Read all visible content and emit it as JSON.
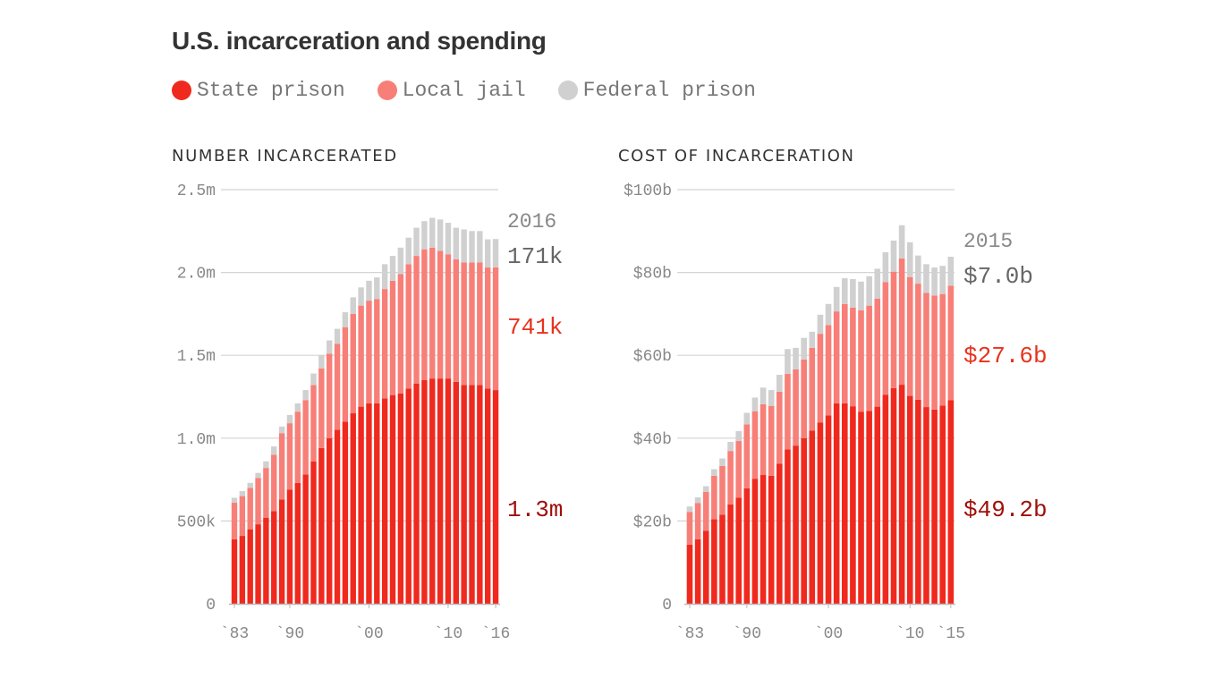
{
  "title": "U.S. incarceration and spending",
  "legend": [
    {
      "label": "State prison",
      "color": "#f0291e"
    },
    {
      "label": "Local jail",
      "color": "#f77f78"
    },
    {
      "label": "Federal prison",
      "color": "#d0d0d0"
    }
  ],
  "chart_data": [
    {
      "type": "bar",
      "stacked": true,
      "title": "NUMBER INCARCERATED",
      "unit": "millions",
      "ylim": [
        0,
        2.5
      ],
      "yticks": [
        {
          "v": 0,
          "label": "0"
        },
        {
          "v": 0.5,
          "label": "500k"
        },
        {
          "v": 1.0,
          "label": "1.0m"
        },
        {
          "v": 1.5,
          "label": "1.5m"
        },
        {
          "v": 2.0,
          "label": "2.0m"
        },
        {
          "v": 2.5,
          "label": "2.5m"
        }
      ],
      "xticks": [
        {
          "year": 1983,
          "label": "`83"
        },
        {
          "year": 1990,
          "label": "`90"
        },
        {
          "year": 2000,
          "label": "`00"
        },
        {
          "year": 2010,
          "label": "`10"
        },
        {
          "year": 2016,
          "label": "`16"
        }
      ],
      "grid": true,
      "x_start": 1983,
      "series": [
        {
          "name": "State prison",
          "values": [
            0.39,
            0.41,
            0.45,
            0.48,
            0.52,
            0.56,
            0.63,
            0.69,
            0.73,
            0.78,
            0.86,
            0.94,
            1.0,
            1.05,
            1.1,
            1.15,
            1.19,
            1.21,
            1.21,
            1.24,
            1.26,
            1.27,
            1.3,
            1.33,
            1.35,
            1.36,
            1.36,
            1.36,
            1.34,
            1.32,
            1.32,
            1.32,
            1.3,
            1.29
          ]
        },
        {
          "name": "Local jail",
          "values": [
            0.22,
            0.24,
            0.25,
            0.28,
            0.3,
            0.34,
            0.4,
            0.4,
            0.43,
            0.45,
            0.46,
            0.48,
            0.51,
            0.52,
            0.57,
            0.6,
            0.61,
            0.62,
            0.63,
            0.66,
            0.69,
            0.72,
            0.75,
            0.77,
            0.79,
            0.79,
            0.77,
            0.75,
            0.74,
            0.74,
            0.74,
            0.74,
            0.73,
            0.741
          ]
        },
        {
          "name": "Federal prison",
          "values": [
            0.03,
            0.03,
            0.03,
            0.03,
            0.04,
            0.05,
            0.04,
            0.05,
            0.05,
            0.06,
            0.07,
            0.08,
            0.08,
            0.09,
            0.09,
            0.1,
            0.11,
            0.12,
            0.13,
            0.15,
            0.15,
            0.16,
            0.16,
            0.17,
            0.17,
            0.18,
            0.19,
            0.19,
            0.19,
            0.2,
            0.19,
            0.19,
            0.17,
            0.171
          ]
        }
      ],
      "end_labels": {
        "year": "2016",
        "federal": "171k",
        "jail": "741k",
        "state": "1.3m"
      }
    },
    {
      "type": "bar",
      "stacked": true,
      "title": "COST OF INCARCERATION",
      "unit": "billions USD",
      "ylim": [
        0,
        100
      ],
      "yticks": [
        {
          "v": 0,
          "label": "0"
        },
        {
          "v": 20,
          "label": "$20b"
        },
        {
          "v": 40,
          "label": "$40b"
        },
        {
          "v": 60,
          "label": "$60b"
        },
        {
          "v": 80,
          "label": "$80b"
        },
        {
          "v": 100,
          "label": "$100b"
        }
      ],
      "xticks": [
        {
          "year": 1983,
          "label": "`83"
        },
        {
          "year": 1990,
          "label": "`90"
        },
        {
          "year": 2000,
          "label": "`00"
        },
        {
          "year": 2010,
          "label": "`10"
        },
        {
          "year": 2015,
          "label": "`15"
        }
      ],
      "grid": true,
      "x_start": 1983,
      "series": [
        {
          "name": "State prison",
          "values": [
            14.3,
            15.6,
            17.6,
            20.4,
            21.5,
            24.0,
            25.6,
            27.9,
            30.2,
            31.1,
            30.9,
            33.8,
            37.3,
            38.2,
            40.0,
            41.8,
            43.8,
            45.5,
            48.4,
            48.4,
            47.7,
            46.4,
            46.6,
            47.6,
            50.5,
            52.1,
            52.9,
            50.2,
            49.3,
            47.5,
            46.9,
            47.9,
            49.2
          ]
        },
        {
          "name": "Local jail",
          "values": [
            7.9,
            8.7,
            9.4,
            10.5,
            11.8,
            12.9,
            13.7,
            15.4,
            16.3,
            17.1,
            16.9,
            17.4,
            18.2,
            18.4,
            19.0,
            20.0,
            21.4,
            21.8,
            22.2,
            24.0,
            23.8,
            24.5,
            25.4,
            26.1,
            27.2,
            28.1,
            30.5,
            28.7,
            28.0,
            27.6,
            27.5,
            26.9,
            27.6
          ]
        },
        {
          "name": "Federal prison",
          "values": [
            1.3,
            1.4,
            1.4,
            1.6,
            1.8,
            2.2,
            2.4,
            2.8,
            3.3,
            4.0,
            3.8,
            4.1,
            6.0,
            5.2,
            5.2,
            3.9,
            4.6,
            5.1,
            5.9,
            6.2,
            6.9,
            6.9,
            7.1,
            7.2,
            7.2,
            7.5,
            8.0,
            8.4,
            6.8,
            6.9,
            6.8,
            6.8,
            7.0
          ]
        }
      ],
      "end_labels": {
        "year": "2015",
        "federal": "$7.0b",
        "jail": "$27.6b",
        "state": "$49.2b"
      }
    }
  ]
}
